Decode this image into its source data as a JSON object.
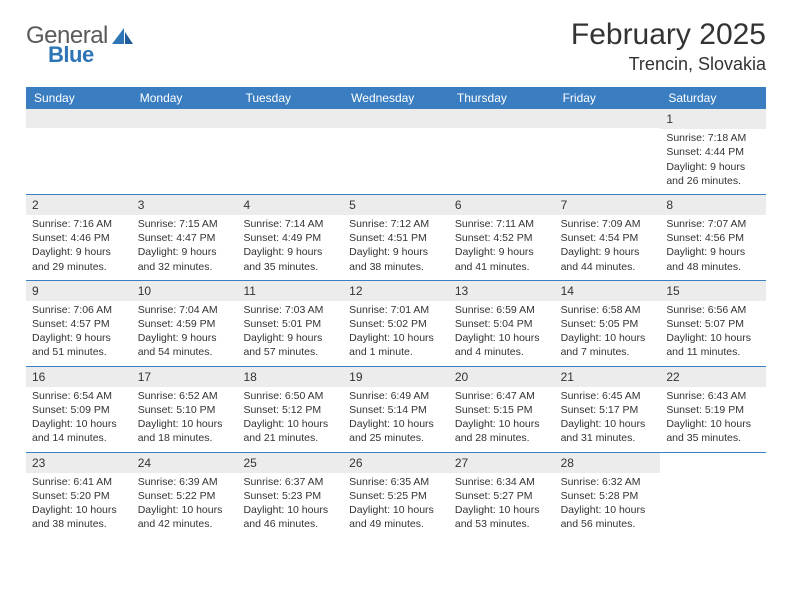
{
  "logo": {
    "word1": "General",
    "word2": "Blue"
  },
  "title": "February 2025",
  "location": "Trencin, Slovakia",
  "colors": {
    "header_blue": "#3a7ec1",
    "logo_blue": "#2e75b6",
    "logo_gray": "#5a5a5a",
    "row_strip": "#ececec",
    "text": "#333333",
    "bg": "#ffffff"
  },
  "weekdays": [
    "Sunday",
    "Monday",
    "Tuesday",
    "Wednesday",
    "Thursday",
    "Friday",
    "Saturday"
  ],
  "weeks": [
    [
      null,
      null,
      null,
      null,
      null,
      null,
      {
        "n": "1",
        "sunrise": "7:18 AM",
        "sunset": "4:44 PM",
        "dl1": "Daylight: 9 hours",
        "dl2": "and 26 minutes."
      }
    ],
    [
      {
        "n": "2",
        "sunrise": "7:16 AM",
        "sunset": "4:46 PM",
        "dl1": "Daylight: 9 hours",
        "dl2": "and 29 minutes."
      },
      {
        "n": "3",
        "sunrise": "7:15 AM",
        "sunset": "4:47 PM",
        "dl1": "Daylight: 9 hours",
        "dl2": "and 32 minutes."
      },
      {
        "n": "4",
        "sunrise": "7:14 AM",
        "sunset": "4:49 PM",
        "dl1": "Daylight: 9 hours",
        "dl2": "and 35 minutes."
      },
      {
        "n": "5",
        "sunrise": "7:12 AM",
        "sunset": "4:51 PM",
        "dl1": "Daylight: 9 hours",
        "dl2": "and 38 minutes."
      },
      {
        "n": "6",
        "sunrise": "7:11 AM",
        "sunset": "4:52 PM",
        "dl1": "Daylight: 9 hours",
        "dl2": "and 41 minutes."
      },
      {
        "n": "7",
        "sunrise": "7:09 AM",
        "sunset": "4:54 PM",
        "dl1": "Daylight: 9 hours",
        "dl2": "and 44 minutes."
      },
      {
        "n": "8",
        "sunrise": "7:07 AM",
        "sunset": "4:56 PM",
        "dl1": "Daylight: 9 hours",
        "dl2": "and 48 minutes."
      }
    ],
    [
      {
        "n": "9",
        "sunrise": "7:06 AM",
        "sunset": "4:57 PM",
        "dl1": "Daylight: 9 hours",
        "dl2": "and 51 minutes."
      },
      {
        "n": "10",
        "sunrise": "7:04 AM",
        "sunset": "4:59 PM",
        "dl1": "Daylight: 9 hours",
        "dl2": "and 54 minutes."
      },
      {
        "n": "11",
        "sunrise": "7:03 AM",
        "sunset": "5:01 PM",
        "dl1": "Daylight: 9 hours",
        "dl2": "and 57 minutes."
      },
      {
        "n": "12",
        "sunrise": "7:01 AM",
        "sunset": "5:02 PM",
        "dl1": "Daylight: 10 hours",
        "dl2": "and 1 minute."
      },
      {
        "n": "13",
        "sunrise": "6:59 AM",
        "sunset": "5:04 PM",
        "dl1": "Daylight: 10 hours",
        "dl2": "and 4 minutes."
      },
      {
        "n": "14",
        "sunrise": "6:58 AM",
        "sunset": "5:05 PM",
        "dl1": "Daylight: 10 hours",
        "dl2": "and 7 minutes."
      },
      {
        "n": "15",
        "sunrise": "6:56 AM",
        "sunset": "5:07 PM",
        "dl1": "Daylight: 10 hours",
        "dl2": "and 11 minutes."
      }
    ],
    [
      {
        "n": "16",
        "sunrise": "6:54 AM",
        "sunset": "5:09 PM",
        "dl1": "Daylight: 10 hours",
        "dl2": "and 14 minutes."
      },
      {
        "n": "17",
        "sunrise": "6:52 AM",
        "sunset": "5:10 PM",
        "dl1": "Daylight: 10 hours",
        "dl2": "and 18 minutes."
      },
      {
        "n": "18",
        "sunrise": "6:50 AM",
        "sunset": "5:12 PM",
        "dl1": "Daylight: 10 hours",
        "dl2": "and 21 minutes."
      },
      {
        "n": "19",
        "sunrise": "6:49 AM",
        "sunset": "5:14 PM",
        "dl1": "Daylight: 10 hours",
        "dl2": "and 25 minutes."
      },
      {
        "n": "20",
        "sunrise": "6:47 AM",
        "sunset": "5:15 PM",
        "dl1": "Daylight: 10 hours",
        "dl2": "and 28 minutes."
      },
      {
        "n": "21",
        "sunrise": "6:45 AM",
        "sunset": "5:17 PM",
        "dl1": "Daylight: 10 hours",
        "dl2": "and 31 minutes."
      },
      {
        "n": "22",
        "sunrise": "6:43 AM",
        "sunset": "5:19 PM",
        "dl1": "Daylight: 10 hours",
        "dl2": "and 35 minutes."
      }
    ],
    [
      {
        "n": "23",
        "sunrise": "6:41 AM",
        "sunset": "5:20 PM",
        "dl1": "Daylight: 10 hours",
        "dl2": "and 38 minutes."
      },
      {
        "n": "24",
        "sunrise": "6:39 AM",
        "sunset": "5:22 PM",
        "dl1": "Daylight: 10 hours",
        "dl2": "and 42 minutes."
      },
      {
        "n": "25",
        "sunrise": "6:37 AM",
        "sunset": "5:23 PM",
        "dl1": "Daylight: 10 hours",
        "dl2": "and 46 minutes."
      },
      {
        "n": "26",
        "sunrise": "6:35 AM",
        "sunset": "5:25 PM",
        "dl1": "Daylight: 10 hours",
        "dl2": "and 49 minutes."
      },
      {
        "n": "27",
        "sunrise": "6:34 AM",
        "sunset": "5:27 PM",
        "dl1": "Daylight: 10 hours",
        "dl2": "and 53 minutes."
      },
      {
        "n": "28",
        "sunrise": "6:32 AM",
        "sunset": "5:28 PM",
        "dl1": "Daylight: 10 hours",
        "dl2": "and 56 minutes."
      },
      null
    ]
  ],
  "labels": {
    "sunrise": "Sunrise: ",
    "sunset": "Sunset: "
  }
}
